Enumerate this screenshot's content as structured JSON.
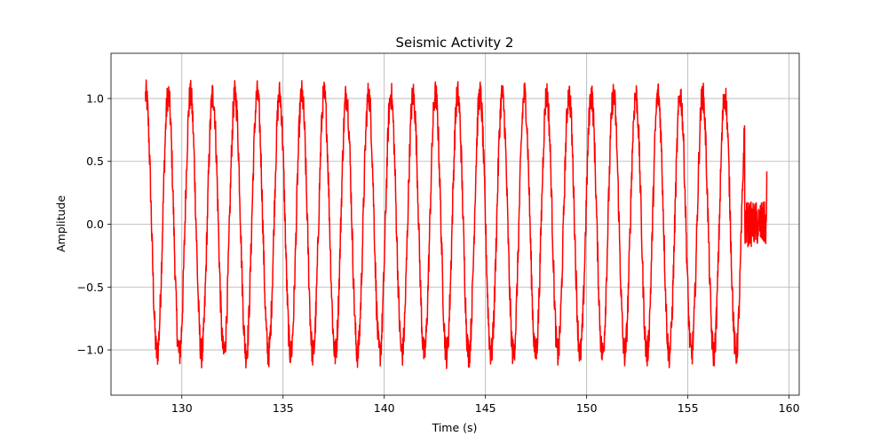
{
  "chart_data": {
    "type": "line",
    "title": "Seismic Activity 2",
    "xlabel": "Time (s)",
    "ylabel": "Amplitude",
    "xlim": [
      126.5,
      160.5
    ],
    "ylim": [
      -1.36,
      1.36
    ],
    "xticks": [
      130,
      135,
      140,
      145,
      150,
      155,
      160
    ],
    "yticks": [
      -1.0,
      -0.5,
      0.0,
      0.5,
      1.0
    ],
    "xtick_labels": [
      "130",
      "135",
      "140",
      "145",
      "150",
      "155",
      "160"
    ],
    "ytick_labels": [
      "−1.0",
      "−0.5",
      "0.0",
      "0.5",
      "1.0"
    ],
    "grid": true,
    "series": [
      {
        "color": "#ff0000",
        "signal": {
          "t_start": 128.2,
          "t_end": 158.9,
          "oscillation_end": 157.8,
          "period": 1.1,
          "amplitude": 1.03,
          "noise": 0.12,
          "tail_amplitude": 0.18,
          "final_value": 0.42
        }
      }
    ]
  }
}
